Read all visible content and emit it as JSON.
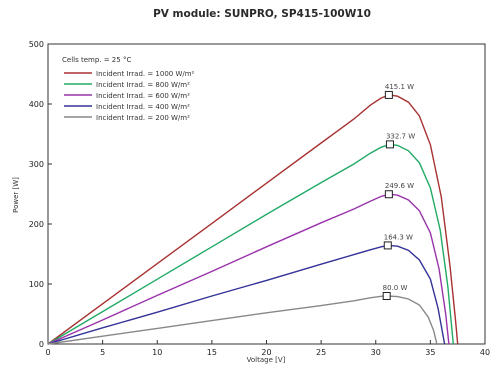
{
  "chart_data": {
    "type": "line",
    "title": "PV module:  SUNPRO,  SP415-100W10",
    "xlabel": "Voltage [V]",
    "ylabel": "Power [W]",
    "xlim": [
      0,
      40
    ],
    "ylim": [
      0,
      500
    ],
    "x_ticks": [
      "0",
      "5",
      "10",
      "15",
      "20",
      "25",
      "30",
      "35",
      "40"
    ],
    "y_ticks": [
      "0",
      "100",
      "200",
      "300",
      "400",
      "500"
    ],
    "grid": false,
    "legend_placement": "top-left",
    "legend_header": "Cells temp. = 25 °C",
    "series": [
      {
        "name": "Incident Irrad. = 1000 W/m²",
        "color": "#a83232",
        "peak_label": "415.1 W",
        "points": [
          [
            0,
            0
          ],
          [
            5,
            67
          ],
          [
            10,
            134
          ],
          [
            15,
            201
          ],
          [
            20,
            268
          ],
          [
            25,
            335
          ],
          [
            28,
            375
          ],
          [
            29.5,
            398
          ],
          [
            30.5,
            410
          ],
          [
            31.2,
            415.1
          ],
          [
            32,
            413
          ],
          [
            33,
            403
          ],
          [
            34,
            380
          ],
          [
            35,
            332
          ],
          [
            36,
            245
          ],
          [
            36.8,
            130
          ],
          [
            37.3,
            40
          ],
          [
            37.5,
            0
          ]
        ]
      },
      {
        "name": "Incident Irrad. = 800 W/m²",
        "color": "#22aa66",
        "peak_label": "332.7 W",
        "points": [
          [
            0,
            0
          ],
          [
            5,
            54
          ],
          [
            10,
            108
          ],
          [
            15,
            162
          ],
          [
            20,
            216
          ],
          [
            25,
            269
          ],
          [
            28,
            300
          ],
          [
            29.5,
            318
          ],
          [
            30.5,
            328
          ],
          [
            31.3,
            332.7
          ],
          [
            32,
            331
          ],
          [
            33,
            322
          ],
          [
            34,
            302
          ],
          [
            35,
            260
          ],
          [
            35.9,
            190
          ],
          [
            36.6,
            95
          ],
          [
            37.1,
            0
          ]
        ]
      },
      {
        "name": "Incident Irrad. = 600 W/m²",
        "color": "#9933aa",
        "peak_label": "249.6 W",
        "points": [
          [
            0,
            0
          ],
          [
            5,
            40
          ],
          [
            10,
            81
          ],
          [
            15,
            121
          ],
          [
            20,
            162
          ],
          [
            25,
            202
          ],
          [
            28,
            225
          ],
          [
            29.5,
            238
          ],
          [
            30.5,
            246
          ],
          [
            31.2,
            249.6
          ],
          [
            32,
            248
          ],
          [
            33,
            240
          ],
          [
            34,
            222
          ],
          [
            35,
            185
          ],
          [
            35.8,
            125
          ],
          [
            36.4,
            50
          ],
          [
            36.7,
            0
          ]
        ]
      },
      {
        "name": "Incident Irrad. = 400 W/m²",
        "color": "#333399",
        "peak_label": "164.3 W",
        "points": [
          [
            0,
            0
          ],
          [
            5,
            27
          ],
          [
            10,
            53
          ],
          [
            15,
            80
          ],
          [
            20,
            106
          ],
          [
            25,
            133
          ],
          [
            28,
            149
          ],
          [
            29.5,
            157
          ],
          [
            30.5,
            162
          ],
          [
            31.1,
            164.3
          ],
          [
            32,
            163
          ],
          [
            33,
            156
          ],
          [
            34,
            140
          ],
          [
            35,
            108
          ],
          [
            35.7,
            60
          ],
          [
            36.1,
            20
          ],
          [
            36.3,
            0
          ]
        ]
      },
      {
        "name": "Incident Irrad. = 200 W/m²",
        "color": "#888888",
        "peak_label": "80.0 W",
        "points": [
          [
            0,
            0
          ],
          [
            5,
            13
          ],
          [
            10,
            26
          ],
          [
            15,
            39
          ],
          [
            20,
            52
          ],
          [
            25,
            64
          ],
          [
            28,
            72
          ],
          [
            29.5,
            77
          ],
          [
            30.5,
            79.5
          ],
          [
            31,
            80.0
          ],
          [
            32,
            79
          ],
          [
            33,
            75
          ],
          [
            34,
            65
          ],
          [
            34.8,
            45
          ],
          [
            35.3,
            22
          ],
          [
            35.6,
            0
          ]
        ]
      }
    ]
  }
}
